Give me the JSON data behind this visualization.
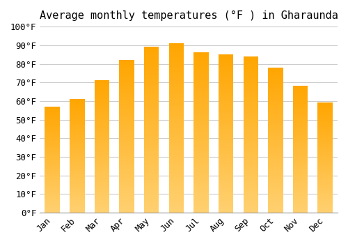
{
  "title": "Average monthly temperatures (°F ) in Gharaunda",
  "months": [
    "Jan",
    "Feb",
    "Mar",
    "Apr",
    "May",
    "Jun",
    "Jul",
    "Aug",
    "Sep",
    "Oct",
    "Nov",
    "Dec"
  ],
  "values": [
    57,
    61,
    71,
    82,
    89,
    91,
    86,
    85,
    84,
    78,
    68,
    59
  ],
  "bar_color_top": "#FFA500",
  "bar_color_bottom": "#FFD070",
  "ylim": [
    0,
    100
  ],
  "yticks": [
    0,
    10,
    20,
    30,
    40,
    50,
    60,
    70,
    80,
    90,
    100
  ],
  "ytick_labels": [
    "0°F",
    "10°F",
    "20°F",
    "30°F",
    "40°F",
    "50°F",
    "60°F",
    "70°F",
    "80°F",
    "90°F",
    "100°F"
  ],
  "grid_color": "#cccccc",
  "background_color": "#ffffff",
  "title_fontsize": 11,
  "tick_fontsize": 9
}
